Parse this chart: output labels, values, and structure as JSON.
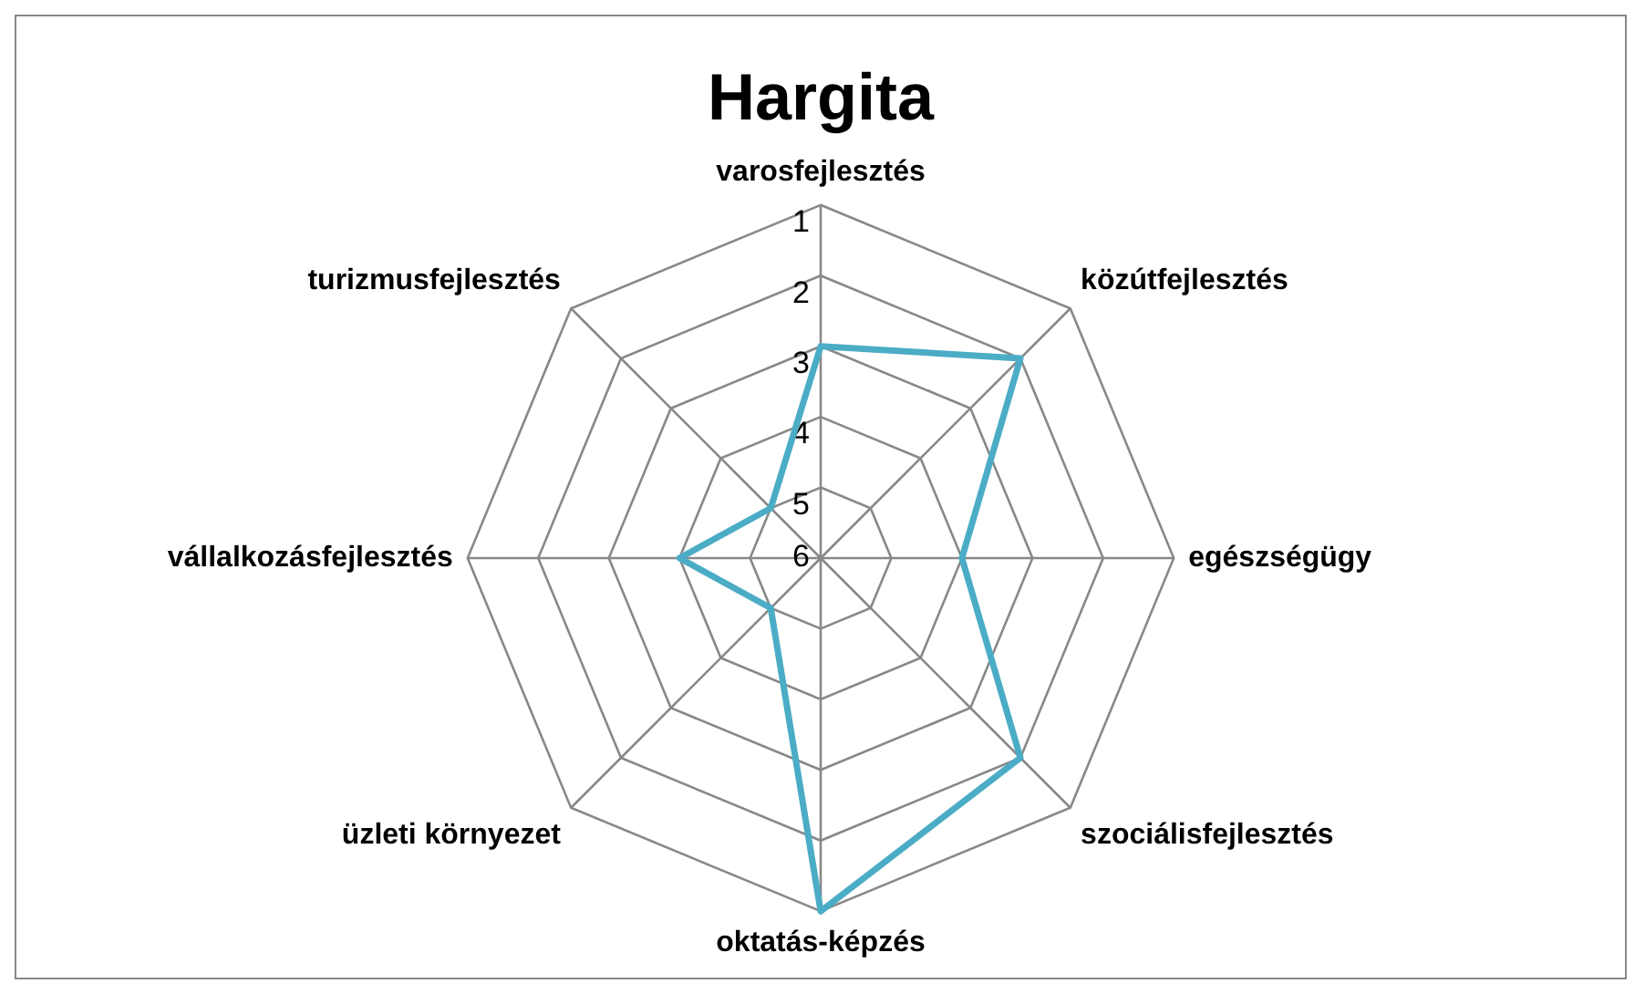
{
  "chart_data": {
    "type": "radar",
    "title": "Hargita",
    "categories": [
      "varosfejlesztés",
      "közútfejlesztés",
      "egészségügy",
      "szociálisfejlesztés",
      "oktatás-képzés",
      "üzleti környezet",
      "vállalkozásfejlesztés",
      "turizmusfejlesztés"
    ],
    "series": [
      {
        "color": "#4bacc6",
        "values": [
          3,
          2,
          4,
          2,
          1,
          5,
          4,
          5
        ]
      }
    ],
    "ylim": [
      6,
      1
    ],
    "yticks": [
      1,
      2,
      3,
      4,
      5,
      6
    ],
    "grid": true,
    "legend": false,
    "marker": "none",
    "line_style": "solid"
  }
}
